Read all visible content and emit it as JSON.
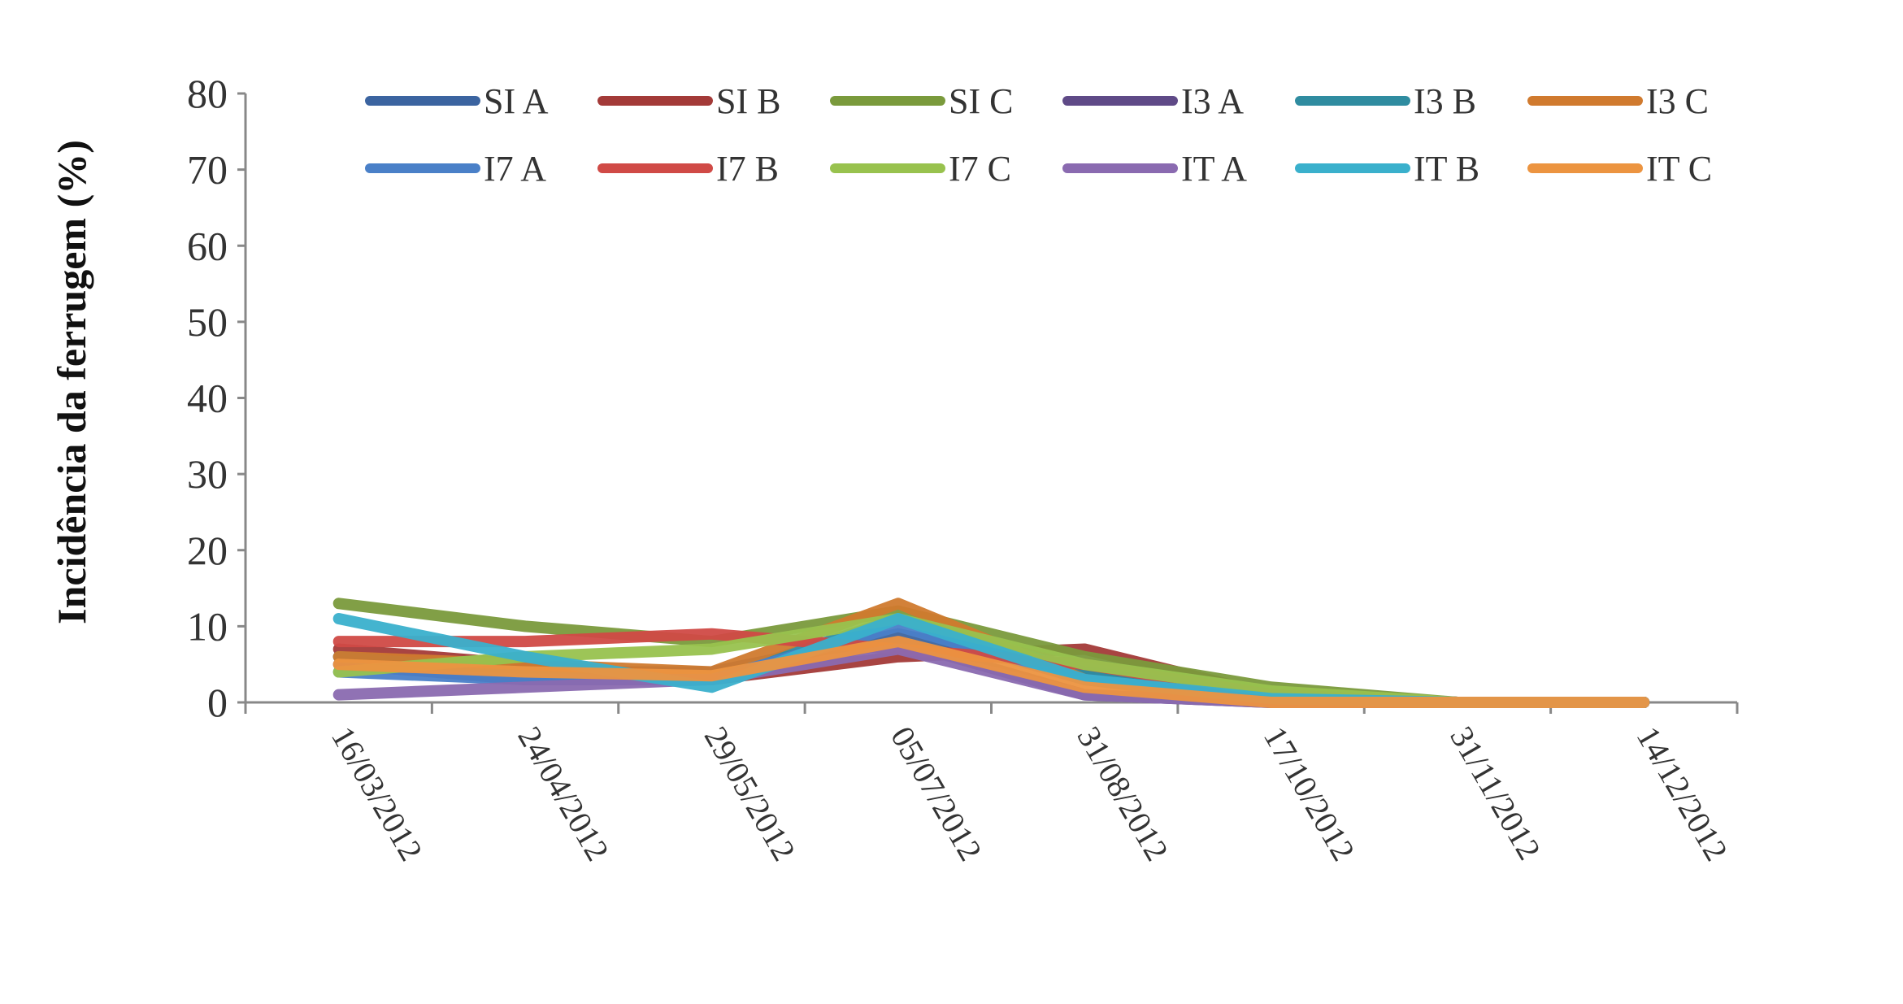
{
  "chart_data": {
    "type": "line",
    "title": "",
    "xlabel": "",
    "ylabel": "Incidência da ferrugem (%)",
    "ylim": [
      0,
      80
    ],
    "yticks": [
      0,
      10,
      20,
      30,
      40,
      50,
      60,
      70,
      80
    ],
    "grid": false,
    "legend_placement": "top",
    "categories": [
      "16/03/2012",
      "24/04/2012",
      "29/05/2012",
      "05/07/2012",
      "31/08/2012",
      "17/10/2012",
      "31/11/2012",
      "14/12/2012"
    ],
    "series": [
      {
        "name": "SI A",
        "color": "#3b64a0",
        "values": [
          6,
          4,
          4,
          9,
          4,
          1,
          0,
          0
        ]
      },
      {
        "name": "SI B",
        "color": "#a33a38",
        "values": [
          7,
          5,
          3,
          6,
          7,
          1,
          0,
          0
        ]
      },
      {
        "name": "SI C",
        "color": "#7a9a3c",
        "values": [
          13,
          10,
          8,
          12,
          6,
          2,
          0,
          0
        ]
      },
      {
        "name": "I3 A",
        "color": "#5f4a87",
        "values": [
          5,
          3,
          3,
          8,
          1,
          0,
          0,
          0
        ]
      },
      {
        "name": "I3 B",
        "color": "#2f8ca0",
        "values": [
          6,
          4,
          3,
          11,
          4,
          1,
          0,
          0
        ]
      },
      {
        "name": "I3 C",
        "color": "#d07a2e",
        "values": [
          6,
          5,
          4,
          13,
          3,
          0,
          0,
          0
        ]
      },
      {
        "name": "I7 A",
        "color": "#4a80c8",
        "values": [
          4,
          3,
          3,
          10,
          3,
          0.5,
          0,
          0
        ]
      },
      {
        "name": "I7 B",
        "color": "#d04a46",
        "values": [
          8,
          8,
          9,
          7,
          5,
          1,
          0,
          0
        ]
      },
      {
        "name": "I7 C",
        "color": "#98c24e",
        "values": [
          4,
          6,
          7,
          11,
          5,
          1.5,
          0,
          0
        ]
      },
      {
        "name": "IT A",
        "color": "#8a6ab0",
        "values": [
          1,
          2,
          3,
          7,
          1,
          0,
          0,
          0
        ]
      },
      {
        "name": "IT B",
        "color": "#3ab0cc",
        "values": [
          11,
          6,
          2,
          11,
          3,
          0.5,
          0,
          0
        ]
      },
      {
        "name": "IT C",
        "color": "#ec9440",
        "values": [
          5,
          4,
          3.5,
          8,
          2,
          0,
          0,
          0
        ]
      }
    ]
  }
}
